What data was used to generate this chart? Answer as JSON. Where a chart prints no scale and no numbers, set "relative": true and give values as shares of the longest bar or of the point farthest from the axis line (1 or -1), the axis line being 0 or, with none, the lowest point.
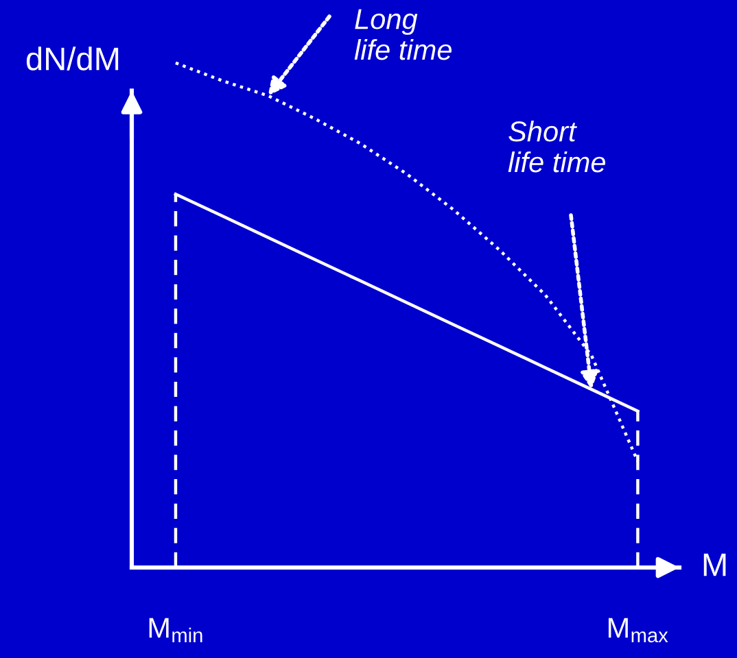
{
  "chart_data": {
    "type": "line",
    "relative": true,
    "xlabel": "M",
    "ylabel": "dN/dM",
    "categories": [
      "M$_{min}$",
      null,
      null,
      null,
      null,
      null,
      null,
      null,
      null,
      null,
      "M$_{max}$"
    ],
    "grid": false,
    "legend": false,
    "marker": "none",
    "series": [
      {
        "color": "#ffffff",
        "line_style": "dotted",
        "values": [
          1.0,
          0.965,
          0.935,
          0.89,
          0.84,
          0.78,
          0.71,
          0.63,
          0.54,
          0.42,
          0.21
        ]
      },
      {
        "color": "#ffffff",
        "line_style": "solid",
        "values": [
          0.74,
          0.697,
          0.654,
          0.611,
          0.568,
          0.525,
          0.482,
          0.439,
          0.396,
          0.353,
          0.31
        ]
      }
    ],
    "ref_lines": [
      {
        "axis": "x",
        "value": "M$_{min}$",
        "color": "#ffffff",
        "line_style": "dashed"
      },
      {
        "axis": "x",
        "value": "M$_{max}$",
        "color": "#ffffff",
        "line_style": "dashed"
      }
    ],
    "annotations": [
      "Long\nlife time",
      "Short\nlife time"
    ]
  }
}
